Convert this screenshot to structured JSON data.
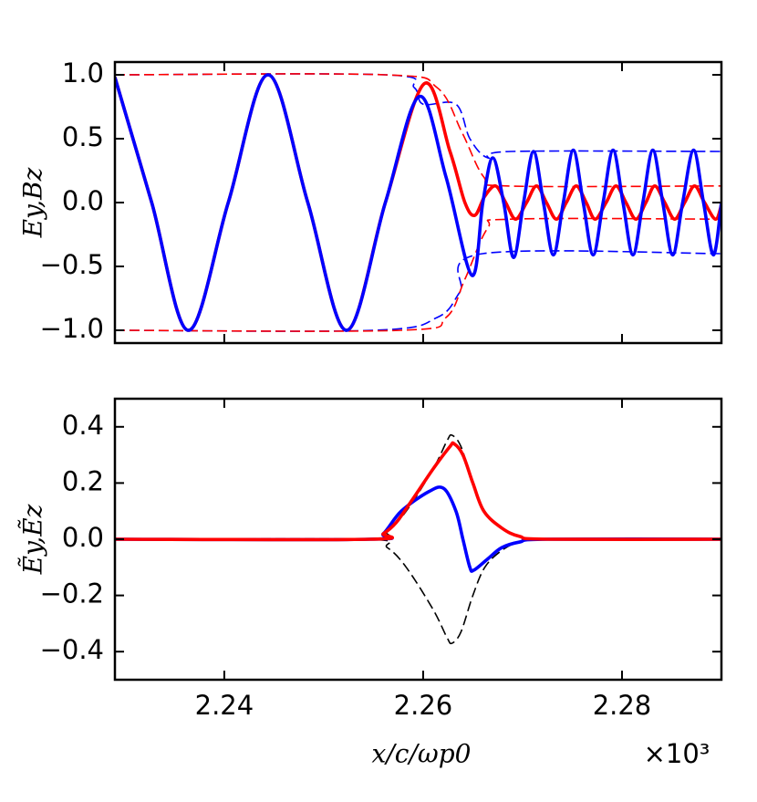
{
  "chart_data": [
    {
      "type": "line",
      "ylabel": "Ey,Bz",
      "xlim": [
        2.229,
        2.29
      ],
      "ylim": [
        -1.1,
        1.1
      ],
      "yticks": [
        {
          "value": -1,
          "label": "−1.0"
        },
        {
          "value": -0.5,
          "label": "−0.5"
        },
        {
          "value": 0,
          "label": "0.0"
        },
        0.5,
        {
          "value": 1,
          "label": "1.0"
        }
      ],
      "series": [
        {
          "color": "#0000ff",
          "style": "solid",
          "x": [
            2.229,
            2.2327,
            2.2364,
            2.2404,
            2.2444,
            2.2484,
            2.2523,
            2.2562,
            2.2596,
            2.2623,
            2.2649,
            2.266,
            2.267,
            2.2681,
            2.2691,
            2.2701,
            2.2711,
            2.2721,
            2.2731,
            2.2741,
            2.2751,
            2.2761,
            2.2771,
            2.2781,
            2.2791,
            2.2801,
            2.2811,
            2.2821,
            2.2831,
            2.2841,
            2.2851,
            2.2861,
            2.2872,
            2.2882,
            2.2892,
            2.29
          ],
          "values": [
            0.98,
            0,
            -1,
            0,
            1,
            0,
            -1,
            0,
            0.83,
            0.2,
            -0.57,
            0,
            0.35,
            0,
            -0.43,
            0,
            0.4,
            0,
            -0.41,
            0,
            0.41,
            0,
            -0.41,
            0,
            0.41,
            0,
            -0.41,
            0,
            0.41,
            0,
            -0.41,
            0,
            0.41,
            0,
            -0.41,
            0
          ]
        },
        {
          "color": "#ff0000",
          "style": "solid",
          "x": [
            2.229,
            2.2327,
            2.2364,
            2.2404,
            2.2444,
            2.2484,
            2.2523,
            2.2562,
            2.2601,
            2.2627,
            2.2642,
            2.2652,
            2.2662,
            2.2673,
            2.2683,
            2.2693,
            2.2704,
            2.2714,
            2.2724,
            2.2734,
            2.2744,
            2.2754,
            2.2764,
            2.2773,
            2.2784,
            2.2794,
            2.2804,
            2.2814,
            2.2824,
            2.2833,
            2.2843,
            2.2853,
            2.2863,
            2.2873,
            2.2883,
            2.2894,
            2.29
          ],
          "values": [
            0.98,
            0,
            -1,
            0,
            1,
            0,
            -1,
            0,
            0.93,
            0.4,
            0,
            -0.1,
            0.05,
            0.13,
            0,
            -0.13,
            0,
            0.13,
            0,
            -0.13,
            0,
            0.13,
            0,
            -0.13,
            0,
            0.13,
            0,
            -0.13,
            0,
            0.13,
            0,
            -0.13,
            0,
            0.13,
            0,
            -0.13,
            -0.02
          ]
        },
        {
          "color": "#ff0000",
          "style": "dashed",
          "x": [
            2.229,
            2.2562,
            2.2614,
            2.2639,
            2.2661,
            2.2684,
            2.29
          ],
          "values": [
            1,
            1,
            0.9,
            0.55,
            0.2,
            0.13,
            0.13
          ]
        },
        {
          "color": "#ff0000",
          "style": "dashed",
          "x": [
            2.229,
            2.2578,
            2.2623,
            2.2642,
            2.2665,
            2.2688,
            2.29
          ],
          "values": [
            -1,
            -1,
            -0.9,
            -0.6,
            -0.2,
            -0.13,
            -0.13
          ]
        },
        {
          "color": "#0000ff",
          "style": "dashed",
          "x": [
            2.229,
            2.2562,
            2.2591,
            2.26,
            2.2633,
            2.2647,
            2.2665,
            2.2688,
            2.29
          ],
          "values": [
            1,
            1,
            0.9,
            0.77,
            0.77,
            0.5,
            0.35,
            0.4,
            0.4
          ]
        },
        {
          "color": "#0000ff",
          "style": "dashed",
          "x": [
            2.229,
            2.2551,
            2.2614,
            2.2637,
            2.266,
            2.29
          ],
          "values": [
            -1,
            -1,
            -0.9,
            -0.7,
            -0.4,
            -0.4
          ]
        }
      ]
    },
    {
      "type": "line",
      "ylabel": "Ẽy,Ẽz",
      "xlabel": "x/c/ωp0",
      "offset_label": "×10³",
      "xlim": [
        2.229,
        2.29
      ],
      "ylim": [
        -0.5,
        0.5
      ],
      "xticks": [
        2.24,
        2.26,
        2.28
      ],
      "yticks": [
        {
          "value": -0.4,
          "label": "−0.4"
        },
        {
          "value": -0.2,
          "label": "−0.2"
        },
        {
          "value": 0,
          "label": "0.0"
        },
        0.2,
        0.4
      ],
      "series": [
        {
          "color": "#000000",
          "style": "dashed",
          "x": [
            2.229,
            2.2541,
            2.2564,
            2.2583,
            2.261,
            2.2624,
            2.2629,
            2.2638,
            2.265,
            2.2662,
            2.2679,
            2.2697,
            2.2725,
            2.29
          ],
          "values": [
            0,
            0,
            0.03,
            0.1,
            0.25,
            0.35,
            0.37,
            0.33,
            0.2,
            0.1,
            0.04,
            0.01,
            0,
            0
          ]
        },
        {
          "color": "#000000",
          "style": "dashed",
          "x": [
            2.229,
            2.2541,
            2.2564,
            2.2583,
            2.261,
            2.2624,
            2.2629,
            2.2638,
            2.265,
            2.2662,
            2.2679,
            2.2697,
            2.2725,
            2.29
          ],
          "values": [
            0,
            0,
            -0.03,
            -0.1,
            -0.25,
            -0.35,
            -0.37,
            -0.33,
            -0.2,
            -0.1,
            -0.04,
            -0.01,
            0,
            0
          ]
        },
        {
          "color": "#ff0000",
          "style": "solid",
          "x": [
            2.229,
            2.2546,
            2.256,
            2.2573,
            2.2589,
            2.261,
            2.2627,
            2.2631,
            2.264,
            2.265,
            2.2661,
            2.2679,
            2.2697,
            2.2725,
            2.29
          ],
          "values": [
            0,
            0,
            0.02,
            0.06,
            0.14,
            0.25,
            0.33,
            0.34,
            0.3,
            0.2,
            0.1,
            0.04,
            0.01,
            0,
            0
          ]
        },
        {
          "color": "#0000ff",
          "style": "solid",
          "x": [
            2.229,
            2.2546,
            2.256,
            2.2578,
            2.2606,
            2.2621,
            2.2633,
            2.264,
            2.2647,
            2.2651,
            2.2665,
            2.2679,
            2.2697,
            2.2725,
            2.29
          ],
          "values": [
            0,
            0,
            0.02,
            0.1,
            0.17,
            0.18,
            0.1,
            0,
            -0.1,
            -0.11,
            -0.07,
            -0.03,
            -0.01,
            0,
            0
          ]
        }
      ]
    }
  ]
}
